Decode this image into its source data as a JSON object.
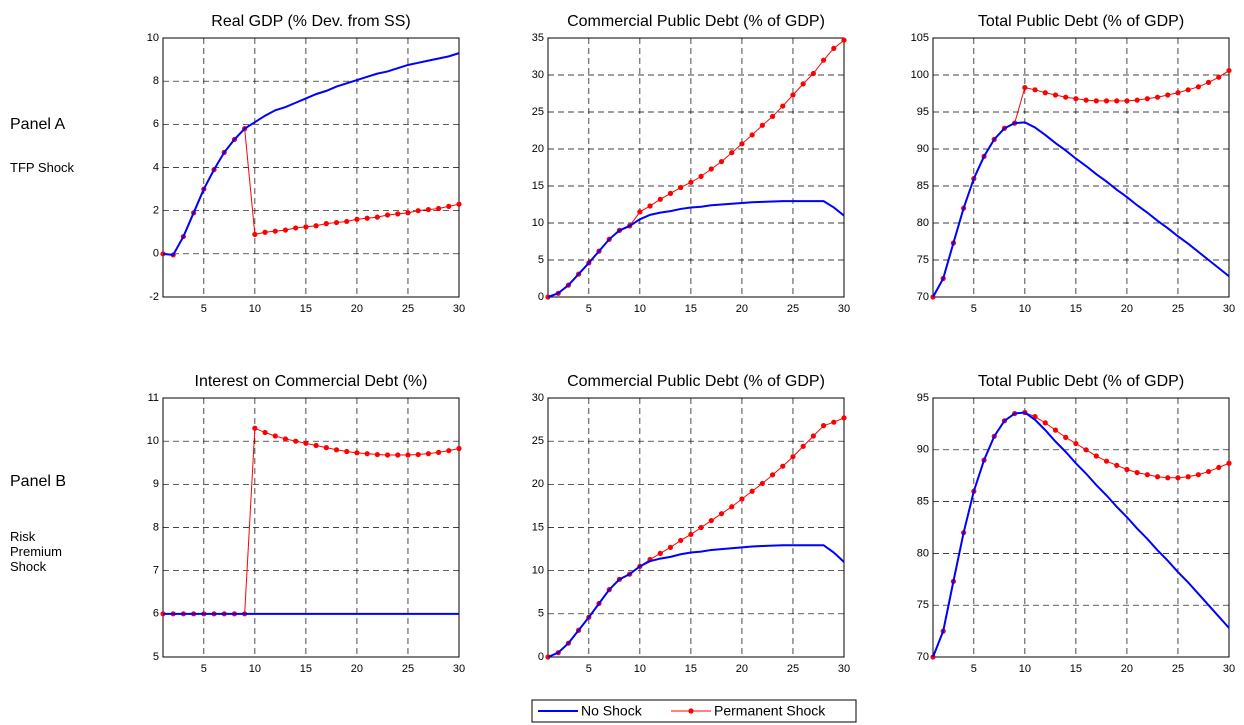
{
  "panels": [
    {
      "label": "Panel A",
      "description": "TFP Shock"
    },
    {
      "label": "Panel B",
      "description": "Risk Premium Shock"
    }
  ],
  "legend": {
    "location": "bottom"
  },
  "chart_data": [
    {
      "type": "line",
      "title": "Real GDP (% Dev. from SS)",
      "grid": true,
      "x": [
        1,
        2,
        3,
        4,
        5,
        6,
        7,
        8,
        9,
        10,
        11,
        12,
        13,
        14,
        15,
        16,
        17,
        18,
        19,
        20,
        21,
        22,
        23,
        24,
        25,
        26,
        27,
        28,
        29,
        30
      ],
      "xlim": [
        1,
        30
      ],
      "xticks": [
        5,
        10,
        15,
        20,
        25,
        30
      ],
      "ylim": [
        -2,
        10
      ],
      "yticks": [
        -2,
        0,
        2,
        4,
        6,
        8,
        10
      ],
      "series": [
        {
          "name": "No Shock",
          "color": "#0000ff",
          "values": [
            0,
            -0.05,
            0.8,
            1.9,
            3.0,
            3.9,
            4.7,
            5.3,
            5.8,
            6.1,
            6.4,
            6.65,
            6.8,
            7.0,
            7.2,
            7.4,
            7.55,
            7.75,
            7.9,
            8.05,
            8.2,
            8.35,
            8.45,
            8.6,
            8.75,
            8.85,
            8.95,
            9.05,
            9.15,
            9.3
          ]
        },
        {
          "name": "Permanent Shock",
          "color": "#ff0000",
          "marker": "circle",
          "values": [
            0,
            -0.05,
            0.8,
            1.9,
            3.0,
            3.9,
            4.7,
            5.3,
            5.8,
            0.9,
            1.0,
            1.05,
            1.1,
            1.2,
            1.25,
            1.3,
            1.4,
            1.45,
            1.5,
            1.6,
            1.65,
            1.7,
            1.8,
            1.85,
            1.9,
            2.0,
            2.05,
            2.1,
            2.2,
            2.3
          ]
        }
      ]
    },
    {
      "type": "line",
      "title": "Commercial Public Debt (% of GDP)",
      "grid": true,
      "x": [
        1,
        2,
        3,
        4,
        5,
        6,
        7,
        8,
        9,
        10,
        11,
        12,
        13,
        14,
        15,
        16,
        17,
        18,
        19,
        20,
        21,
        22,
        23,
        24,
        25,
        26,
        27,
        28,
        29,
        30
      ],
      "xlim": [
        1,
        30
      ],
      "xticks": [
        5,
        10,
        15,
        20,
        25,
        30
      ],
      "ylim": [
        0,
        35
      ],
      "yticks": [
        0,
        5,
        10,
        15,
        20,
        25,
        30,
        35
      ],
      "series": [
        {
          "name": "No Shock",
          "color": "#0000ff",
          "values": [
            0,
            0.5,
            1.6,
            3.1,
            4.6,
            6.2,
            7.8,
            9.0,
            9.6,
            10.5,
            11.1,
            11.4,
            11.6,
            11.9,
            12.1,
            12.2,
            12.4,
            12.5,
            12.6,
            12.7,
            12.8,
            12.85,
            12.9,
            12.95,
            12.95,
            12.95,
            12.95,
            12.95,
            12.1,
            11.0
          ]
        },
        {
          "name": "Permanent Shock",
          "color": "#ff0000",
          "marker": "circle",
          "values": [
            0,
            0.5,
            1.6,
            3.1,
            4.6,
            6.2,
            7.8,
            9.0,
            9.6,
            11.5,
            12.3,
            13.2,
            14.0,
            14.8,
            15.5,
            16.3,
            17.3,
            18.3,
            19.5,
            20.7,
            21.9,
            23.2,
            24.4,
            25.8,
            27.3,
            28.8,
            30.2,
            32.0,
            33.6,
            34.7
          ]
        }
      ]
    },
    {
      "type": "line",
      "title": "Total Public Debt (% of GDP)",
      "grid": true,
      "x": [
        1,
        2,
        3,
        4,
        5,
        6,
        7,
        8,
        9,
        10,
        11,
        12,
        13,
        14,
        15,
        16,
        17,
        18,
        19,
        20,
        21,
        22,
        23,
        24,
        25,
        26,
        27,
        28,
        29,
        30
      ],
      "xlim": [
        1,
        30
      ],
      "xticks": [
        5,
        10,
        15,
        20,
        25,
        30
      ],
      "ylim": [
        70,
        105
      ],
      "yticks": [
        70,
        75,
        80,
        85,
        90,
        95,
        100,
        105
      ],
      "series": [
        {
          "name": "No Shock",
          "color": "#0000ff",
          "values": [
            70,
            72.5,
            77.3,
            82,
            86,
            89,
            91.3,
            92.8,
            93.5,
            93.6,
            92.9,
            91.9,
            90.8,
            89.8,
            88.7,
            87.7,
            86.6,
            85.6,
            84.5,
            83.5,
            82.4,
            81.4,
            80.3,
            79.3,
            78.2,
            77.2,
            76.1,
            75.0,
            73.9,
            72.8
          ]
        },
        {
          "name": "Permanent Shock",
          "color": "#ff0000",
          "marker": "circle",
          "values": [
            70,
            72.5,
            77.3,
            82,
            86,
            89,
            91.3,
            92.8,
            93.5,
            98.3,
            98.0,
            97.6,
            97.3,
            97.0,
            96.8,
            96.6,
            96.5,
            96.5,
            96.5,
            96.5,
            96.6,
            96.8,
            97.0,
            97.3,
            97.6,
            98.0,
            98.4,
            99.0,
            99.7,
            100.6
          ]
        }
      ]
    },
    {
      "type": "line",
      "title": "Interest on Commercial Debt (%)",
      "grid": true,
      "x": [
        1,
        2,
        3,
        4,
        5,
        6,
        7,
        8,
        9,
        10,
        11,
        12,
        13,
        14,
        15,
        16,
        17,
        18,
        19,
        20,
        21,
        22,
        23,
        24,
        25,
        26,
        27,
        28,
        29,
        30
      ],
      "xlim": [
        1,
        30
      ],
      "xticks": [
        5,
        10,
        15,
        20,
        25,
        30
      ],
      "ylim": [
        5,
        11
      ],
      "yticks": [
        5,
        6,
        7,
        8,
        9,
        10,
        11
      ],
      "series": [
        {
          "name": "No Shock",
          "color": "#0000ff",
          "values": [
            6,
            6,
            6,
            6,
            6,
            6,
            6,
            6,
            6,
            6,
            6,
            6,
            6,
            6,
            6,
            6,
            6,
            6,
            6,
            6,
            6,
            6,
            6,
            6,
            6,
            6,
            6,
            6,
            6,
            6
          ]
        },
        {
          "name": "Permanent Shock",
          "color": "#ff0000",
          "marker": "circle",
          "values": [
            6,
            6,
            6,
            6,
            6,
            6,
            6,
            6,
            6,
            10.3,
            10.2,
            10.12,
            10.05,
            10.0,
            9.95,
            9.9,
            9.85,
            9.8,
            9.76,
            9.73,
            9.71,
            9.69,
            9.68,
            9.68,
            9.68,
            9.69,
            9.71,
            9.74,
            9.78,
            9.83
          ]
        }
      ]
    },
    {
      "type": "line",
      "title": "Commercial Public Debt (% of GDP)",
      "grid": true,
      "x": [
        1,
        2,
        3,
        4,
        5,
        6,
        7,
        8,
        9,
        10,
        11,
        12,
        13,
        14,
        15,
        16,
        17,
        18,
        19,
        20,
        21,
        22,
        23,
        24,
        25,
        26,
        27,
        28,
        29,
        30
      ],
      "xlim": [
        1,
        30
      ],
      "xticks": [
        5,
        10,
        15,
        20,
        25,
        30
      ],
      "ylim": [
        0,
        30
      ],
      "yticks": [
        0,
        5,
        10,
        15,
        20,
        25,
        30
      ],
      "series": [
        {
          "name": "No Shock",
          "color": "#0000ff",
          "values": [
            0,
            0.5,
            1.6,
            3.1,
            4.6,
            6.2,
            7.8,
            9.0,
            9.6,
            10.5,
            11.1,
            11.4,
            11.6,
            11.9,
            12.1,
            12.2,
            12.4,
            12.5,
            12.6,
            12.7,
            12.8,
            12.85,
            12.9,
            12.95,
            12.95,
            12.95,
            12.95,
            12.95,
            12.1,
            11.0
          ]
        },
        {
          "name": "Permanent Shock",
          "color": "#ff0000",
          "marker": "circle",
          "values": [
            0,
            0.5,
            1.6,
            3.1,
            4.6,
            6.2,
            7.8,
            9.0,
            9.6,
            10.5,
            11.3,
            12.0,
            12.7,
            13.5,
            14.2,
            15.0,
            15.8,
            16.6,
            17.4,
            18.3,
            19.2,
            20.1,
            21.1,
            22.1,
            23.2,
            24.4,
            25.6,
            26.8,
            27.2,
            27.7
          ]
        }
      ]
    },
    {
      "type": "line",
      "title": "Total Public Debt (% of GDP)",
      "grid": true,
      "x": [
        1,
        2,
        3,
        4,
        5,
        6,
        7,
        8,
        9,
        10,
        11,
        12,
        13,
        14,
        15,
        16,
        17,
        18,
        19,
        20,
        21,
        22,
        23,
        24,
        25,
        26,
        27,
        28,
        29,
        30
      ],
      "xlim": [
        1,
        30
      ],
      "xticks": [
        5,
        10,
        15,
        20,
        25,
        30
      ],
      "ylim": [
        70,
        95
      ],
      "yticks": [
        70,
        75,
        80,
        85,
        90,
        95
      ],
      "series": [
        {
          "name": "No Shock",
          "color": "#0000ff",
          "values": [
            70,
            72.5,
            77.3,
            82,
            86,
            89,
            91.3,
            92.8,
            93.5,
            93.6,
            92.9,
            91.9,
            90.8,
            89.8,
            88.7,
            87.7,
            86.6,
            85.6,
            84.5,
            83.5,
            82.4,
            81.4,
            80.3,
            79.3,
            78.2,
            77.2,
            76.1,
            75.0,
            73.9,
            72.8
          ]
        },
        {
          "name": "Permanent Shock",
          "color": "#ff0000",
          "marker": "circle",
          "values": [
            70,
            72.5,
            77.3,
            82,
            86,
            89,
            91.3,
            92.8,
            93.5,
            93.6,
            93.2,
            92.6,
            91.9,
            91.2,
            90.6,
            90.0,
            89.4,
            88.9,
            88.5,
            88.1,
            87.8,
            87.6,
            87.4,
            87.3,
            87.3,
            87.4,
            87.6,
            87.9,
            88.3,
            88.7
          ]
        }
      ]
    }
  ]
}
